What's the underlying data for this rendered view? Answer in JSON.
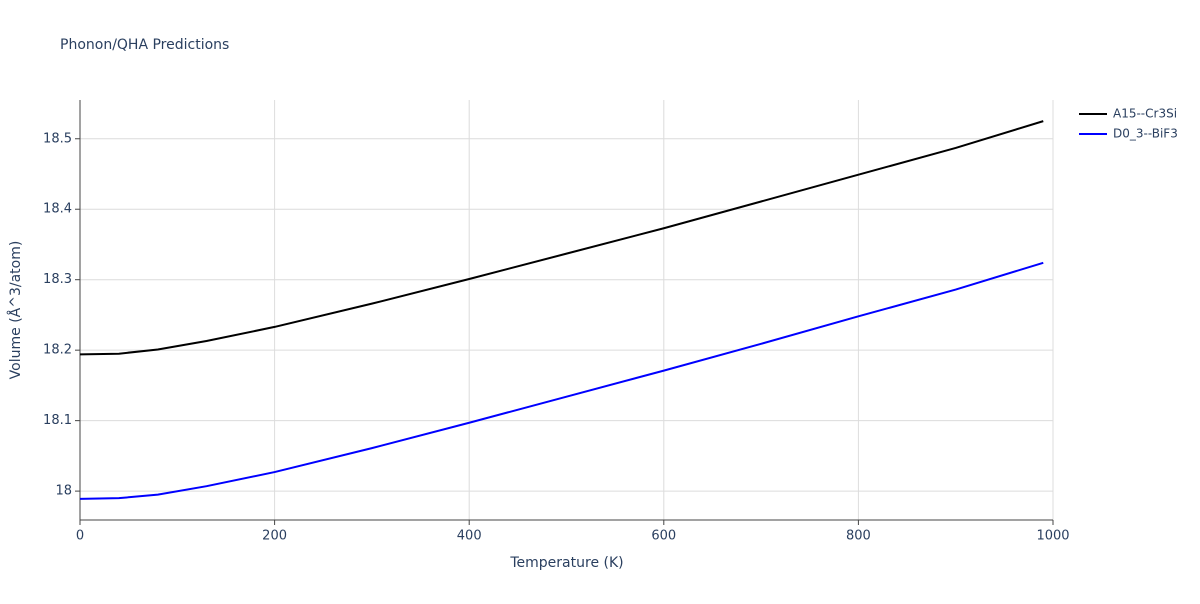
{
  "chart_data": {
    "type": "line",
    "title": "Phonon/QHA Predictions",
    "x_label": "Temperature (K)",
    "y_label": "Volume (Å^3/atom)",
    "x": [
      0,
      40,
      80,
      130,
      200,
      300,
      400,
      500,
      600,
      700,
      800,
      900,
      990
    ],
    "series": [
      {
        "name": "A15--Cr3Si",
        "color": "#000000",
        "values": [
          18.194,
          18.195,
          18.201,
          18.213,
          18.233,
          18.266,
          18.301,
          18.337,
          18.373,
          18.411,
          18.449,
          18.487,
          18.525
        ]
      },
      {
        "name": "D0_3--BiF3",
        "color": "#0000ff",
        "values": [
          17.989,
          17.99,
          17.995,
          18.007,
          18.027,
          18.061,
          18.097,
          18.134,
          18.171,
          18.209,
          18.248,
          18.286,
          18.324
        ]
      }
    ],
    "xlim": [
      0,
      1000
    ],
    "xticks": [
      0,
      200,
      400,
      600,
      800,
      1000
    ],
    "ylim": [
      17.959,
      18.555
    ],
    "yticks": [
      18,
      18.1,
      18.2,
      18.3,
      18.4,
      18.5
    ],
    "grid": true,
    "legend": "right"
  }
}
